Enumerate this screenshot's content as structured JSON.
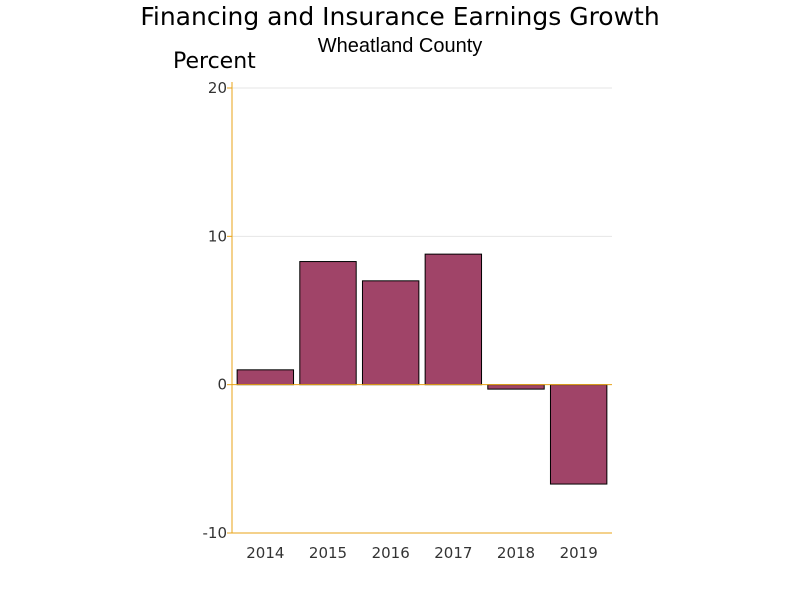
{
  "chart_data": {
    "type": "bar",
    "title": "Financing and Insurance Earnings Growth",
    "subtitle": "Wheatland County",
    "ylabel": "Percent",
    "xlabel": "",
    "categories": [
      "2014",
      "2015",
      "2016",
      "2017",
      "2018",
      "2019"
    ],
    "values": [
      1.0,
      8.3,
      7.0,
      8.8,
      -0.3,
      -6.7
    ],
    "ylim": [
      -10,
      20
    ],
    "yticks": [
      -10,
      0,
      10,
      20
    ],
    "grid": true,
    "legend": "none",
    "colors": {
      "bar": "#a04468",
      "bar_outline": "#000000",
      "axis": "#e8a317",
      "grid": "#e6e6e6"
    }
  }
}
